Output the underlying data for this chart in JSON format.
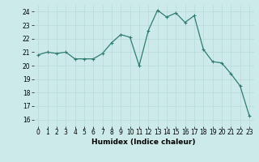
{
  "x": [
    0,
    1,
    2,
    3,
    4,
    5,
    6,
    7,
    8,
    9,
    10,
    11,
    12,
    13,
    14,
    15,
    16,
    17,
    18,
    19,
    20,
    21,
    22,
    23
  ],
  "y": [
    20.8,
    21.0,
    20.9,
    21.0,
    20.5,
    20.5,
    20.5,
    20.9,
    21.7,
    22.3,
    22.1,
    20.0,
    22.6,
    24.1,
    23.6,
    23.9,
    23.2,
    23.7,
    21.2,
    20.3,
    20.2,
    19.4,
    18.5,
    16.3
  ],
  "line_color": "#2e7d6e",
  "marker": "+",
  "marker_size": 3,
  "bg_color": "#cdeaea",
  "grid_color": "#b8d8d8",
  "xlabel": "Humidex (Indice chaleur)",
  "xlim": [
    -0.5,
    23.5
  ],
  "ylim": [
    15.5,
    24.5
  ],
  "yticks": [
    16,
    17,
    18,
    19,
    20,
    21,
    22,
    23,
    24
  ],
  "xticks": [
    0,
    1,
    2,
    3,
    4,
    5,
    6,
    7,
    8,
    9,
    10,
    11,
    12,
    13,
    14,
    15,
    16,
    17,
    18,
    19,
    20,
    21,
    22,
    23
  ],
  "tick_fontsize": 5.5,
  "xlabel_fontsize": 6.5,
  "line_width": 0.9,
  "marker_edge_width": 0.8
}
